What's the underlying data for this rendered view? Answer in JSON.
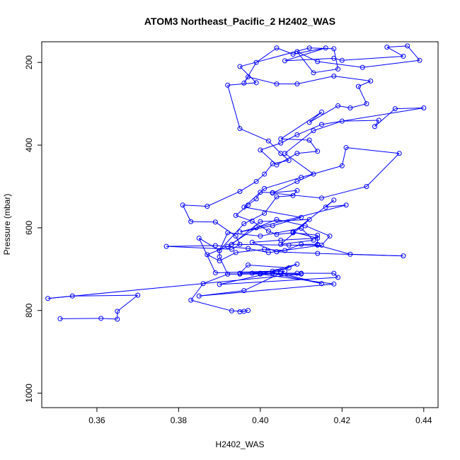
{
  "chart_data": {
    "type": "line",
    "title": "ATOM3 Northeast_Pacific_2 H2402_WAS",
    "xlabel": "H2402_WAS",
    "ylabel": "Pressure (mbar)",
    "xlim": [
      0.3465,
      0.4435
    ],
    "ylim": [
      1035,
      150
    ],
    "y_reversed": true,
    "grid": false,
    "legend": "none",
    "x_ticks": [
      "0.36",
      "0.38",
      "0.40",
      "0.42",
      "0.44"
    ],
    "y_ticks": [
      "200",
      "400",
      "600",
      "800",
      "1000"
    ],
    "series": [
      {
        "color": "#0000ff",
        "marker": "open-circle",
        "points": [
          [
            0.351,
            820
          ],
          [
            0.361,
            819
          ],
          [
            0.365,
            821
          ],
          [
            0.365,
            802
          ],
          [
            0.37,
            763
          ],
          [
            0.354,
            765
          ],
          [
            0.348,
            771
          ],
          [
            0.41,
            712
          ],
          [
            0.392,
            712
          ],
          [
            0.395,
            712
          ],
          [
            0.403,
            710
          ],
          [
            0.415,
            735
          ],
          [
            0.405,
            710
          ],
          [
            0.409,
            710
          ],
          [
            0.4,
            710
          ],
          [
            0.398,
            710
          ],
          [
            0.41,
            710
          ],
          [
            0.418,
            710
          ],
          [
            0.419,
            720
          ],
          [
            0.39,
            737
          ],
          [
            0.404,
            706
          ],
          [
            0.409,
            688
          ],
          [
            0.4,
            712
          ],
          [
            0.418,
            736
          ],
          [
            0.385,
            765
          ],
          [
            0.396,
            752
          ],
          [
            0.406,
            705
          ],
          [
            0.395,
            710
          ],
          [
            0.397,
            690
          ],
          [
            0.407,
            697
          ],
          [
            0.403,
            705
          ],
          [
            0.389,
            709
          ],
          [
            0.385,
            625
          ],
          [
            0.39,
            655
          ],
          [
            0.392,
            612
          ],
          [
            0.4,
            620
          ],
          [
            0.41,
            601
          ],
          [
            0.413,
            630
          ],
          [
            0.405,
            640
          ],
          [
            0.412,
            580
          ],
          [
            0.4,
            585
          ],
          [
            0.393,
            640
          ],
          [
            0.407,
            642
          ],
          [
            0.414,
            642
          ],
          [
            0.422,
            664
          ],
          [
            0.435,
            668
          ],
          [
            0.414,
            662
          ],
          [
            0.404,
            658
          ],
          [
            0.398,
            635
          ],
          [
            0.405,
            630
          ],
          [
            0.414,
            625
          ],
          [
            0.408,
            610
          ],
          [
            0.418,
            533
          ],
          [
            0.416,
            550
          ],
          [
            0.421,
            545
          ],
          [
            0.395,
            610
          ],
          [
            0.403,
            595
          ],
          [
            0.41,
            575
          ],
          [
            0.396,
            550
          ],
          [
            0.401,
            505
          ],
          [
            0.41,
            478
          ],
          [
            0.42,
            450
          ],
          [
            0.421,
            406
          ],
          [
            0.434,
            420
          ],
          [
            0.426,
            500
          ],
          [
            0.415,
            528
          ],
          [
            0.403,
            516
          ],
          [
            0.409,
            488
          ],
          [
            0.413,
            470
          ],
          [
            0.406,
            420
          ],
          [
            0.413,
            365
          ],
          [
            0.42,
            342
          ],
          [
            0.429,
            340
          ],
          [
            0.428,
            355
          ],
          [
            0.433,
            312
          ],
          [
            0.44,
            310
          ],
          [
            0.415,
            350
          ],
          [
            0.409,
            375
          ],
          [
            0.405,
            395
          ],
          [
            0.4,
            412
          ],
          [
            0.404,
            448
          ],
          [
            0.409,
            420
          ],
          [
            0.414,
            415
          ],
          [
            0.412,
            388
          ],
          [
            0.405,
            385
          ],
          [
            0.415,
            320
          ],
          [
            0.412,
            345
          ],
          [
            0.419,
            305
          ],
          [
            0.422,
            310
          ],
          [
            0.426,
            300
          ],
          [
            0.424,
            258
          ],
          [
            0.427,
            245
          ],
          [
            0.418,
            233
          ],
          [
            0.409,
            252
          ],
          [
            0.404,
            252
          ],
          [
            0.397,
            235
          ],
          [
            0.396,
            250
          ],
          [
            0.399,
            200
          ],
          [
            0.404,
            165
          ],
          [
            0.408,
            180
          ],
          [
            0.416,
            165
          ],
          [
            0.406,
            196
          ],
          [
            0.418,
            190
          ],
          [
            0.42,
            195
          ],
          [
            0.435,
            185
          ],
          [
            0.431,
            163
          ],
          [
            0.436,
            160
          ],
          [
            0.439,
            195
          ],
          [
            0.425,
            212
          ],
          [
            0.414,
            198
          ],
          [
            0.409,
            174
          ],
          [
            0.413,
            225
          ],
          [
            0.419,
            216
          ],
          [
            0.418,
            167
          ],
          [
            0.412,
            165
          ],
          [
            0.395,
            210
          ],
          [
            0.399,
            249
          ],
          [
            0.392,
            255
          ],
          [
            0.395,
            360
          ],
          [
            0.402,
            390
          ],
          [
            0.405,
            420
          ],
          [
            0.407,
            437
          ],
          [
            0.403,
            445
          ],
          [
            0.401,
            470
          ],
          [
            0.399,
            488
          ],
          [
            0.395,
            512
          ],
          [
            0.387,
            548
          ],
          [
            0.381,
            545
          ],
          [
            0.383,
            585
          ],
          [
            0.389,
            586
          ],
          [
            0.394,
            620
          ],
          [
            0.395,
            640
          ],
          [
            0.393,
            652
          ],
          [
            0.377,
            645
          ],
          [
            0.389,
            643
          ],
          [
            0.397,
            650
          ],
          [
            0.402,
            660
          ],
          [
            0.415,
            642
          ],
          [
            0.417,
            620
          ],
          [
            0.411,
            595
          ],
          [
            0.404,
            580
          ],
          [
            0.399,
            600
          ],
          [
            0.392,
            645
          ],
          [
            0.387,
            665
          ],
          [
            0.39,
            680
          ],
          [
            0.394,
            660
          ],
          [
            0.401,
            652
          ],
          [
            0.406,
            655
          ],
          [
            0.41,
            640
          ],
          [
            0.414,
            640
          ],
          [
            0.414,
            618
          ],
          [
            0.408,
            612
          ],
          [
            0.404,
            616
          ],
          [
            0.402,
            608
          ],
          [
            0.398,
            584
          ],
          [
            0.394,
            570
          ],
          [
            0.397,
            545
          ],
          [
            0.399,
            530
          ],
          [
            0.4,
            514
          ],
          [
            0.403,
            515
          ],
          [
            0.409,
            510
          ],
          [
            0.408,
            522
          ],
          [
            0.404,
            525
          ],
          [
            0.401,
            565
          ],
          [
            0.396,
            590
          ],
          [
            0.39,
            655
          ],
          [
            0.39,
            670
          ],
          [
            0.392,
            712
          ],
          [
            0.386,
            735
          ],
          [
            0.383,
            775
          ],
          [
            0.393,
            801
          ],
          [
            0.396,
            802
          ],
          [
            0.397,
            800
          ],
          [
            0.395,
            803
          ]
        ]
      }
    ]
  }
}
